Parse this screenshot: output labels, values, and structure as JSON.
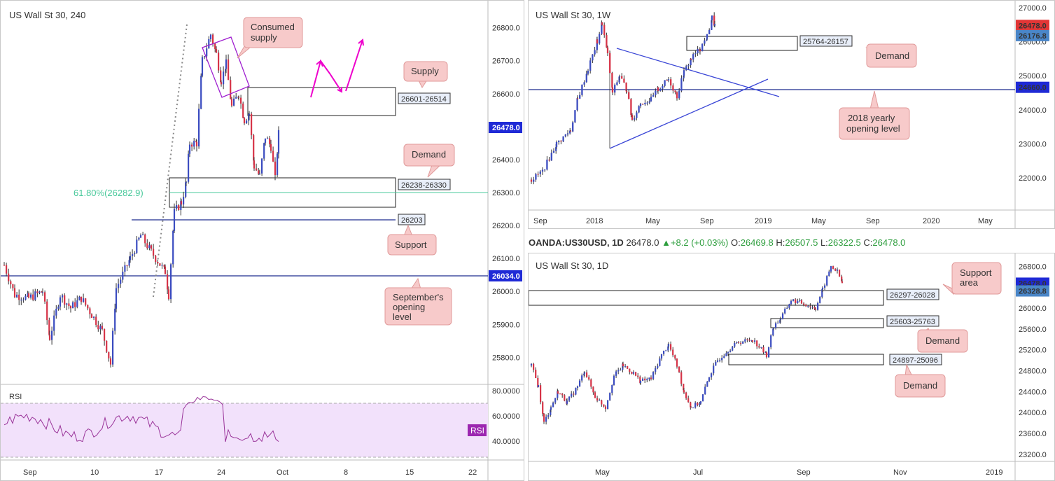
{
  "colors": {
    "up": "#3b4cc0",
    "down": "#d63347",
    "wick": "#333333",
    "level_line": "#1f2c8f",
    "fib": "#49c99b",
    "callout_fill": "#f7caca",
    "callout_stroke": "#e09a9a",
    "supply_arrow": "#ee00cc",
    "trend_line": "#3a46d6",
    "price_badge_dark": "#1f2ad6",
    "price_badge_red": "#e23636",
    "price_badge_blue": "#4a86c8",
    "rsi_line": "#993399",
    "rsi_band": "#f2e1fb"
  },
  "chart_data": [
    {
      "type": "candlestick",
      "title": "US Wall St 30, 240",
      "ylim": [
        25735,
        26865
      ],
      "y_ticks": [
        "26800.0",
        "26700.0",
        "26600.0",
        "26500.0",
        "26400.0",
        "26300.0",
        "26200.0",
        "26100.0",
        "26000.0",
        "25900.0",
        "25800.0"
      ],
      "x_ticks": [
        "Sep",
        "10",
        "17",
        "24",
        "Oct",
        "8",
        "15",
        "22"
      ],
      "last_price": "26478.0",
      "zones": [
        {
          "label": "26601-26514",
          "high": 26601,
          "low": 26514,
          "name": "Supply"
        },
        {
          "label": "26238-26330",
          "high": 26330,
          "low": 26238,
          "name": "Demand"
        }
      ],
      "levels": [
        {
          "label": "26203",
          "value": 26203,
          "name": "Support"
        },
        {
          "label": "26034.0",
          "value": 26034,
          "name": "September's opening level"
        }
      ],
      "fib": {
        "label": "61.80%(26282.9)",
        "value": 26282.9
      },
      "annotations": [
        "Consumed supply",
        "Supply",
        "Demand",
        "Support",
        "September's opening level"
      ],
      "rsi": {
        "label": "RSI",
        "badge": "RSI",
        "y_ticks": [
          "80.0000",
          "60.0000",
          "40.0000"
        ],
        "upper": 70,
        "lower": 30,
        "ylim": [
          25,
          85
        ]
      }
    },
    {
      "type": "candlestick",
      "title": "US Wall St 30, 1W",
      "ylim": [
        21200,
        27100
      ],
      "y_ticks": [
        "27000.0",
        "26000.0",
        "25000.0",
        "24000.0",
        "23000.0",
        "22000.0"
      ],
      "x_ticks": [
        "Sep",
        "2018",
        "May",
        "Sep",
        "2019",
        "May",
        "Sep",
        "2020",
        "May"
      ],
      "badges": [
        {
          "text": "26478.0",
          "value": 26478,
          "color": "price_badge_red"
        },
        {
          "text": "26176.8",
          "value": 26176.8,
          "color": "price_badge_blue"
        },
        {
          "text": "24660.0",
          "value": 24660,
          "color": "price_badge_dark"
        }
      ],
      "zones": [
        {
          "label": "25764-26157",
          "high": 26157,
          "low": 25764,
          "name": "Demand"
        }
      ],
      "levels": [
        {
          "value": 24660,
          "name": "2018 yearly opening level"
        }
      ],
      "annotations": [
        "Demand",
        "2018 yearly opening level"
      ]
    },
    {
      "type": "candlestick",
      "title": "US Wall St 30, 1D",
      "ylim": [
        23130,
        26980
      ],
      "y_ticks": [
        "26800.0",
        "26400.0",
        "26000.0",
        "25600.0",
        "25200.0",
        "24800.0",
        "24400.0",
        "24000.0",
        "23600.0",
        "23200.0"
      ],
      "x_ticks": [
        "May",
        "Jul",
        "Sep",
        "Nov",
        "2019"
      ],
      "badges": [
        {
          "text": "26478.0",
          "value": 26478,
          "color": "price_badge_dark"
        },
        {
          "text": "26328.8",
          "value": 26328.8,
          "color": "price_badge_blue"
        }
      ],
      "zones": [
        {
          "label": "26297-26028",
          "high": 26297,
          "low": 26028,
          "name": "Support area"
        },
        {
          "label": "25603-25763",
          "high": 25763,
          "low": 25603,
          "name": "Demand"
        },
        {
          "label": "24897-25096",
          "high": 25096,
          "low": 24897,
          "name": "Demand"
        }
      ],
      "annotations": [
        "Support area",
        "Demand",
        "Demand"
      ]
    }
  ],
  "ohlc_bar": {
    "symbol": "OANDA:US30USD, 1D",
    "close": "26478.0",
    "change": "+8.2 (+0.03%)",
    "o_label": "O:",
    "o": "26469.8",
    "h_label": "H:",
    "h": "26507.5",
    "l_label": "L:",
    "l": "26322.5",
    "c_label": "C:",
    "c": "26478.0"
  }
}
